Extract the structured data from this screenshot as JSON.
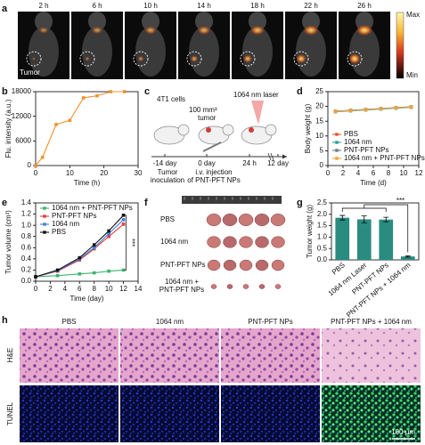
{
  "panel_a": {
    "label": "a",
    "times": [
      "2 h",
      "6 h",
      "10 h",
      "14 h",
      "18 h",
      "22 h",
      "26 h"
    ],
    "tumor": "Tumor",
    "colorbar_max": "Max",
    "colorbar_min": "Min"
  },
  "panel_c": {
    "label": "c",
    "cells": "4T1 cells",
    "tumor_size": [
      "100 mm³",
      "tumor"
    ],
    "laser": "1064 nm laser",
    "timeline": [
      "-14 day",
      "0 day",
      "24 h",
      "12 day"
    ],
    "step_1": [
      "Tumor",
      "inoculation"
    ],
    "step_2": [
      "i.v. injection",
      "of PNT-PFT NPs"
    ]
  },
  "panel_f": {
    "label": "f",
    "rows": [
      "PBS",
      "1064 nm",
      "PNT-PFT NPs",
      "1064 nm +",
      "PNT-PFT NPs"
    ]
  },
  "panel_h": {
    "label": "h",
    "columns": [
      "PBS",
      "1064 nm",
      "PNT-PFT NPs",
      "PNT-PFT NPs + 1064 nm"
    ],
    "rows": [
      "H&E",
      "TUNEL"
    ],
    "scale_bar": "100 μm"
  },
  "chart_data": [
    {
      "type": "line",
      "label": "b",
      "xlabel": "Time (h)",
      "ylabel": "Flu. intensity (a.u.)",
      "x": [
        0,
        2,
        6,
        10,
        14,
        18,
        22,
        26
      ],
      "series": [
        {
          "color": "#f0922e",
          "values": [
            0,
            2000,
            10000,
            11000,
            16500,
            17000,
            18000,
            18000
          ]
        }
      ],
      "xlim": [
        0,
        30
      ],
      "xticks": [
        0,
        10,
        20,
        30
      ],
      "ylim": [
        0,
        18000
      ],
      "yticks": [
        0,
        6000,
        12000,
        18000
      ]
    },
    {
      "type": "line",
      "label": "d",
      "xlabel": "Time (d)",
      "ylabel": "Body weight (g)",
      "legend": "lower right",
      "x": [
        1,
        3,
        5,
        7,
        9,
        11
      ],
      "series": [
        {
          "name": "PBS",
          "color": "#e4572e",
          "values": [
            18.3,
            18.6,
            18.9,
            19.2,
            19.5,
            19.8
          ]
        },
        {
          "name": "1064 nm",
          "color": "#2a9d8f",
          "values": [
            18.2,
            18.5,
            18.8,
            19.1,
            19.4,
            19.7
          ]
        },
        {
          "name": "PNT-PFT NPs",
          "color": "#6c7a89",
          "values": [
            18.4,
            18.7,
            19.0,
            19.3,
            19.6,
            19.9
          ]
        },
        {
          "name": "1064 nm + PNT-PFT NPs",
          "color": "#f4a236",
          "values": [
            18.3,
            18.6,
            18.9,
            19.2,
            19.5,
            19.8
          ]
        }
      ],
      "xlim": [
        0,
        12
      ],
      "xticks": [
        0,
        2,
        4,
        6,
        8,
        10,
        12
      ],
      "ylim": [
        0,
        25
      ],
      "yticks": [
        0,
        5,
        10,
        15,
        20,
        25
      ]
    },
    {
      "type": "line",
      "label": "e",
      "xlabel": "Time (day)",
      "ylabel": "Tumor volume (cm³)",
      "legend": "upper left",
      "annotation": "***",
      "x": [
        0,
        3,
        6,
        8,
        10,
        12
      ],
      "series": [
        {
          "name": "1064 nm + PNT-PFT NPs",
          "color": "#3cb371",
          "values": [
            0.08,
            0.1,
            0.13,
            0.15,
            0.18,
            0.2
          ]
        },
        {
          "name": "PNT-PFT NPs",
          "color": "#e0403a",
          "values": [
            0.08,
            0.18,
            0.38,
            0.58,
            0.8,
            1.02
          ]
        },
        {
          "name": "1064 nm",
          "color": "#3d7fe0",
          "values": [
            0.08,
            0.19,
            0.4,
            0.6,
            0.85,
            1.1
          ]
        },
        {
          "name": "PBS",
          "color": "#111111",
          "values": [
            0.08,
            0.2,
            0.42,
            0.65,
            0.9,
            1.18
          ]
        }
      ],
      "xlim": [
        0,
        14
      ],
      "xticks": [
        0,
        2,
        4,
        6,
        8,
        10,
        12,
        14
      ],
      "ylim": [
        0,
        1.4
      ],
      "yticks": [
        {
          "value": 0,
          "label": "0.0"
        },
        0.2,
        0.4,
        0.6,
        0.8,
        {
          "value": 1,
          "label": "1.0"
        },
        1.2,
        1.4
      ]
    },
    {
      "type": "bar",
      "label": "g",
      "ylabel": "Tumor weight (g)",
      "annotation": "***",
      "color": "#2a8c80",
      "categories": [
        "PBS",
        "1064 nm Laser",
        "PNT-PFT NPs",
        "PNT-PFT NPs + 1064 nm"
      ],
      "values": [
        1.85,
        1.78,
        1.77,
        0.15
      ],
      "errors": [
        0.1,
        0.15,
        0.1,
        0.03
      ],
      "ylim": [
        0,
        2.5
      ],
      "yticks": [
        {
          "value": 0,
          "label": "0.0"
        },
        0.5,
        {
          "value": 1,
          "label": "1.0"
        },
        1.5,
        {
          "value": 2,
          "label": "2.0"
        },
        2.5
      ]
    }
  ]
}
